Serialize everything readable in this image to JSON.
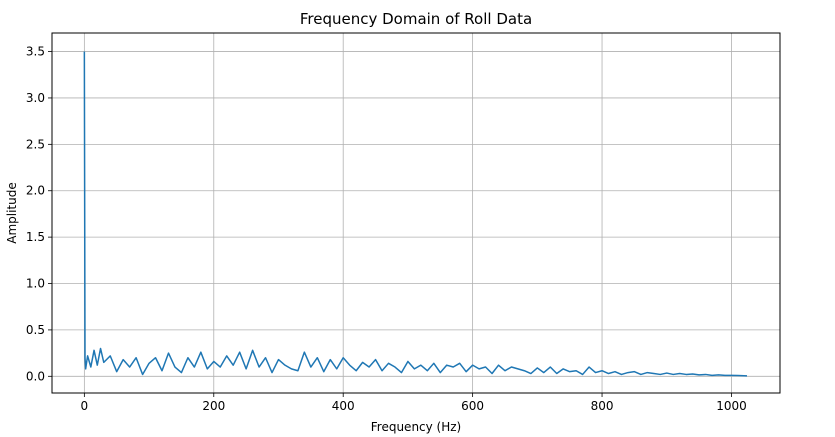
{
  "chart_data": {
    "type": "line",
    "title": "Frequency Domain of Roll Data",
    "xlabel": "Frequency (Hz)",
    "ylabel": "Amplitude",
    "xlim": [
      -50,
      1075
    ],
    "ylim": [
      -0.18,
      3.7
    ],
    "xticks": [
      0,
      200,
      400,
      600,
      800,
      1000
    ],
    "xtick_labels": [
      "0",
      "200",
      "400",
      "600",
      "800",
      "1000"
    ],
    "yticks": [
      0.0,
      0.5,
      1.0,
      1.5,
      2.0,
      2.5,
      3.0,
      3.5
    ],
    "ytick_labels": [
      "0.0",
      "0.5",
      "1.0",
      "1.5",
      "2.0",
      "2.5",
      "3.0",
      "3.5"
    ],
    "grid": true,
    "legend": false,
    "line_color": "#1f77b4",
    "series": [
      {
        "x": [
          0,
          1,
          2,
          5,
          10,
          15,
          20,
          25,
          30,
          40,
          50,
          60,
          70,
          80,
          90,
          100,
          110,
          120,
          130,
          140,
          150,
          160,
          170,
          180,
          190,
          200,
          210,
          220,
          230,
          240,
          250,
          260,
          270,
          280,
          290,
          300,
          310,
          320,
          330,
          340,
          350,
          360,
          370,
          380,
          390,
          400,
          410,
          420,
          430,
          440,
          450,
          460,
          470,
          480,
          490,
          500,
          510,
          520,
          530,
          540,
          550,
          560,
          570,
          580,
          590,
          600,
          610,
          620,
          630,
          640,
          650,
          660,
          670,
          680,
          690,
          700,
          710,
          720,
          730,
          740,
          750,
          760,
          770,
          780,
          790,
          800,
          810,
          820,
          830,
          840,
          850,
          860,
          870,
          880,
          890,
          900,
          910,
          920,
          930,
          940,
          950,
          960,
          970,
          980,
          990,
          1000,
          1010,
          1024
        ],
        "y": [
          3.5,
          0.2,
          0.08,
          0.22,
          0.1,
          0.28,
          0.12,
          0.3,
          0.15,
          0.22,
          0.05,
          0.18,
          0.1,
          0.2,
          0.02,
          0.14,
          0.2,
          0.06,
          0.25,
          0.1,
          0.04,
          0.2,
          0.1,
          0.26,
          0.08,
          0.16,
          0.1,
          0.22,
          0.12,
          0.26,
          0.08,
          0.28,
          0.1,
          0.2,
          0.04,
          0.18,
          0.12,
          0.08,
          0.06,
          0.26,
          0.1,
          0.2,
          0.05,
          0.18,
          0.08,
          0.2,
          0.12,
          0.06,
          0.15,
          0.1,
          0.18,
          0.06,
          0.14,
          0.1,
          0.04,
          0.16,
          0.08,
          0.12,
          0.06,
          0.14,
          0.04,
          0.12,
          0.1,
          0.14,
          0.05,
          0.12,
          0.08,
          0.1,
          0.03,
          0.12,
          0.06,
          0.1,
          0.08,
          0.06,
          0.03,
          0.09,
          0.04,
          0.1,
          0.03,
          0.08,
          0.05,
          0.06,
          0.02,
          0.1,
          0.04,
          0.06,
          0.03,
          0.05,
          0.02,
          0.04,
          0.05,
          0.02,
          0.04,
          0.03,
          0.02,
          0.035,
          0.02,
          0.03,
          0.02,
          0.025,
          0.015,
          0.02,
          0.01,
          0.015,
          0.01,
          0.01,
          0.008,
          0.005
        ]
      }
    ]
  }
}
